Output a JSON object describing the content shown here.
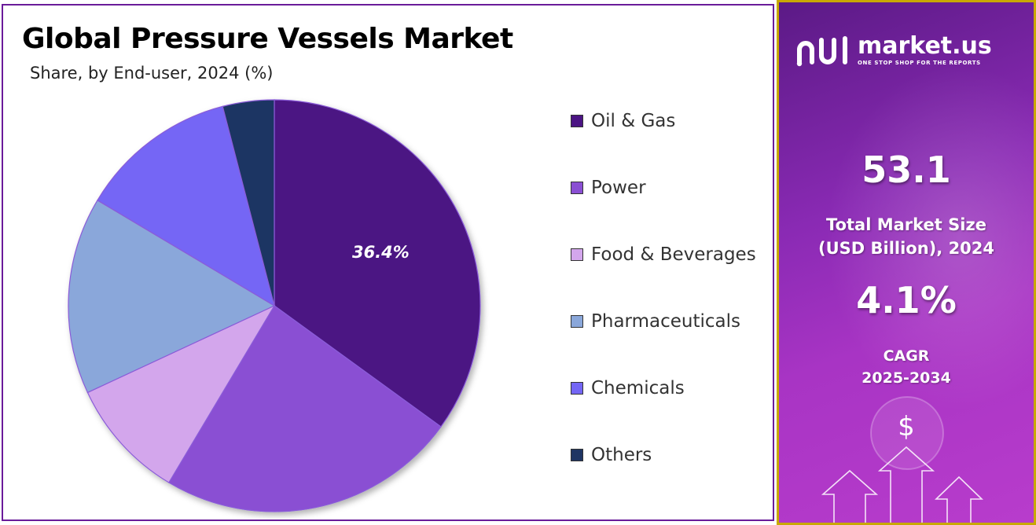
{
  "header": {
    "title": "Global Pressure Vessels Market",
    "subtitle": "Share, by End-user, 2024 (%)"
  },
  "chart_data": {
    "type": "pie",
    "categories": [
      "Oil & Gas",
      "Power",
      "Food & Beverages",
      "Pharmaceuticals",
      "Chemicals",
      "Others"
    ],
    "values": [
      36.4,
      24.5,
      9.9,
      16.1,
      12.9,
      4.2
    ],
    "data_labels": [
      "36.4%",
      "",
      "",
      "",
      "",
      ""
    ],
    "colors": [
      "#4b1483",
      "#8a4fd3",
      "#d3a6ec",
      "#8aa7da",
      "#7466f5",
      "#1f3563"
    ],
    "start_angle_deg": 0,
    "direction": "clockwise",
    "legend_position": "right"
  },
  "sidebar": {
    "brand": "market.us",
    "tagline": "ONE STOP SHOP FOR THE REPORTS",
    "market_size_value": "53.1",
    "market_size_label_line1": "Total Market Size",
    "market_size_label_line2": "(USD Billion), 2024",
    "cagr_value": "4.1%",
    "cagr_label_line1": "CAGR",
    "cagr_label_line2": "2025-2034",
    "currency_symbol": "$",
    "accent_color": "#c9a800",
    "icons": [
      "market-us-logo-icon",
      "dollar-coin-icon",
      "growth-arrows-icon"
    ]
  }
}
